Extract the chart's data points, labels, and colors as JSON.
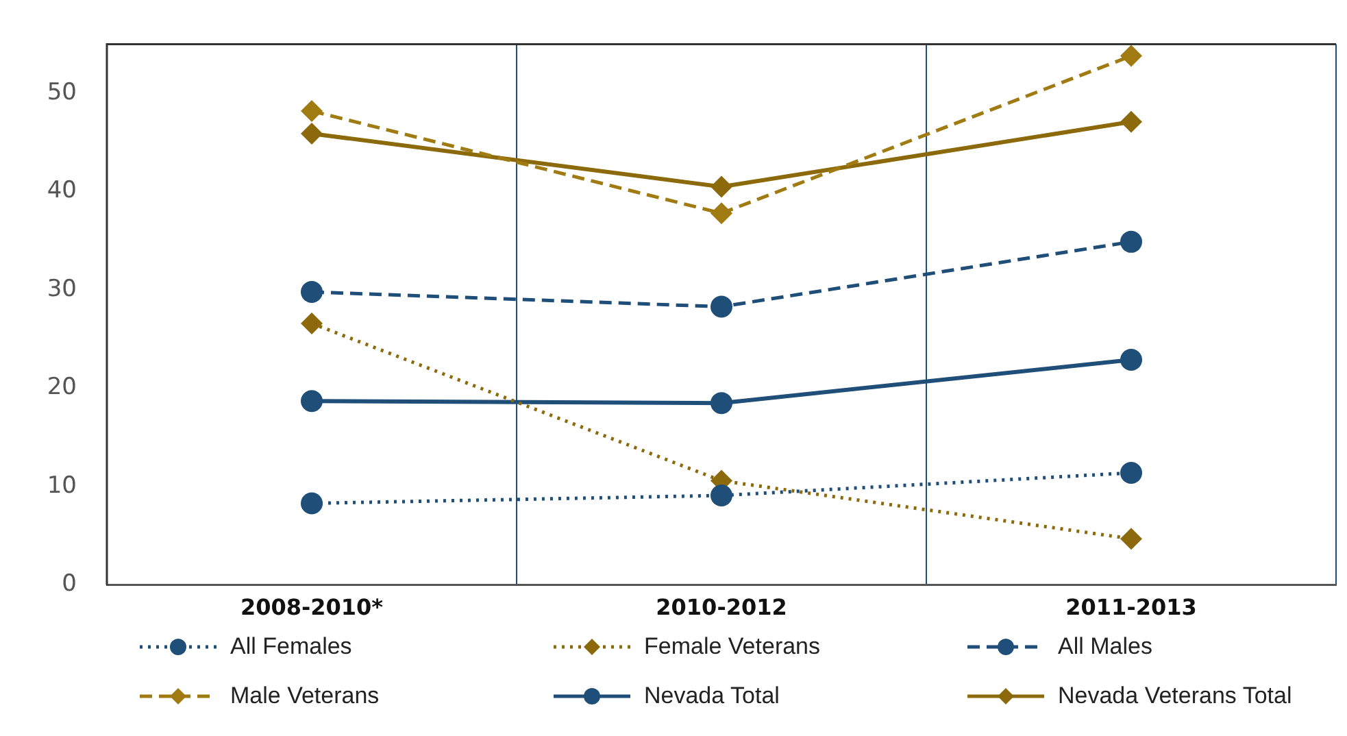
{
  "chart_data": {
    "type": "line",
    "categories": [
      "2008-2010*",
      "2010-2012",
      "2011-2013"
    ],
    "series": [
      {
        "name": "All Females",
        "color": "#1f4e79",
        "values": [
          8.3,
          9.1,
          11.4
        ],
        "marker": "circle",
        "line_style": "dotted"
      },
      {
        "name": "Female Veterans",
        "color": "#8c6a0c",
        "values": [
          26.6,
          10.6,
          4.7
        ],
        "marker": "diamond",
        "line_style": "dotted"
      },
      {
        "name": "All Males",
        "color": "#1f4e79",
        "values": [
          29.8,
          28.3,
          34.9
        ],
        "marker": "circle",
        "line_style": "dashed"
      },
      {
        "name": "Male Veterans",
        "color": "#a07b12",
        "values": [
          48.2,
          37.8,
          53.8
        ],
        "marker": "diamond",
        "line_style": "dashed"
      },
      {
        "name": "Nevada Total",
        "color": "#1f4e79",
        "values": [
          18.7,
          18.5,
          22.9
        ],
        "marker": "circle",
        "line_style": "solid"
      },
      {
        "name": "Nevada Veterans Total",
        "color": "#8c6a0c",
        "values": [
          45.9,
          40.5,
          47.1
        ],
        "marker": "diamond",
        "line_style": "solid"
      }
    ],
    "ylim": [
      0,
      55
    ],
    "yticks": [
      0,
      10,
      20,
      30,
      40,
      50
    ],
    "grid": "x",
    "legend": "bottom"
  }
}
